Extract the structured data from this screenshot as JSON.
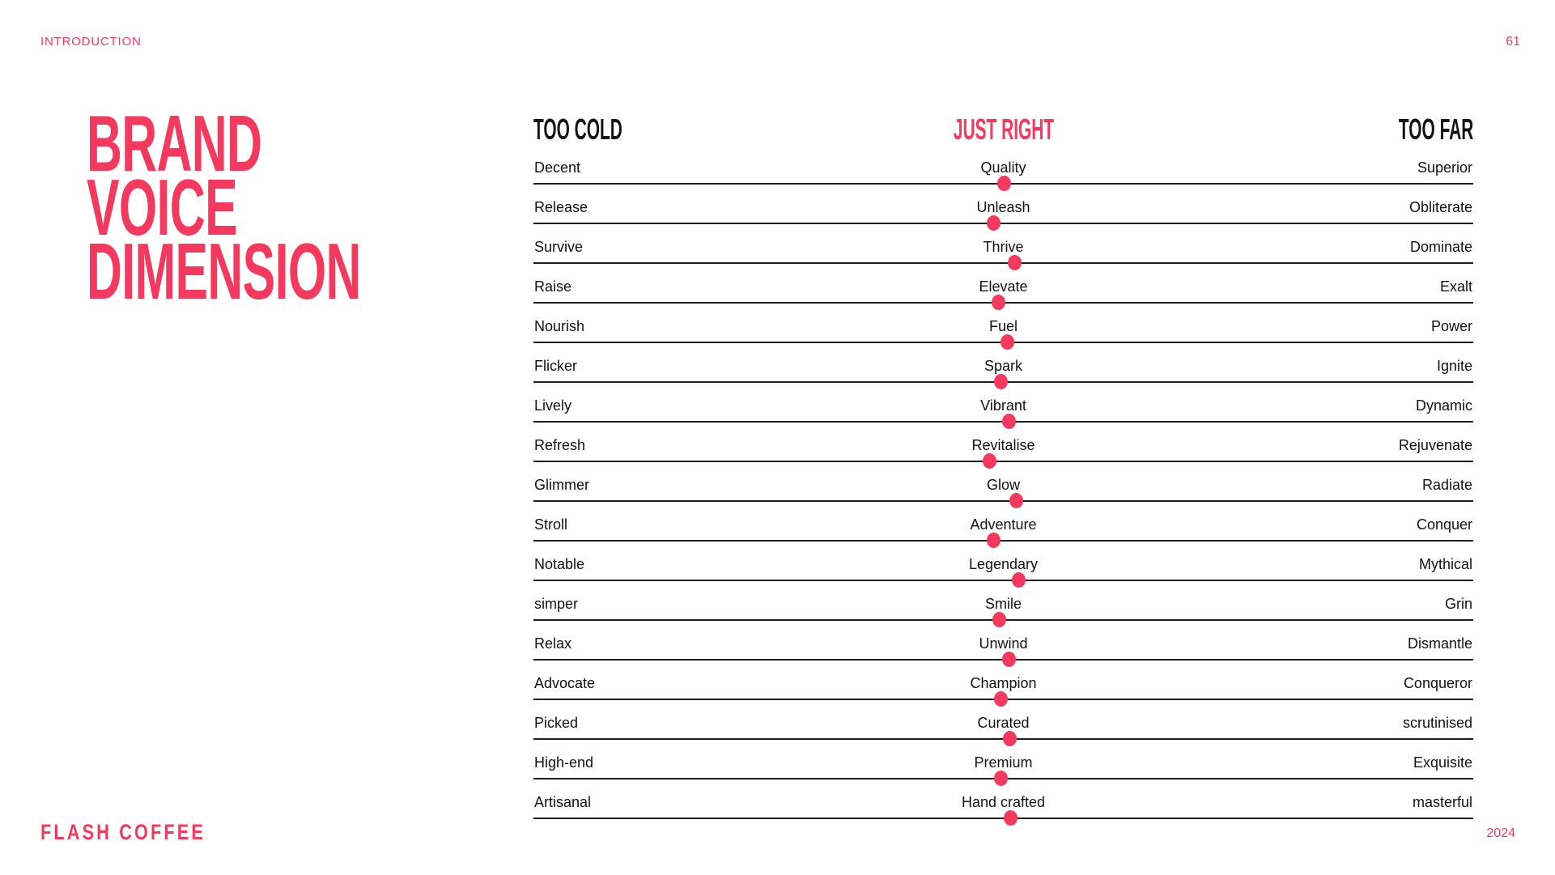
{
  "page": {
    "section_label": "INTRODUCTION",
    "page_number": "61",
    "footer_brand": "FLASH COFFEE",
    "footer_year": "2024",
    "accent_color": "#F4395E",
    "line_color": "#1d1d1d"
  },
  "title": {
    "lines": [
      "BRAND",
      "VOICE",
      "DIMENSION"
    ]
  },
  "table": {
    "headers": {
      "left": "TOO COLD",
      "center": "JUST RIGHT",
      "right": "TOO FAR"
    },
    "rows": [
      {
        "left": "Decent",
        "center": "Quality",
        "right": "Superior",
        "dot_percent": 50.1
      },
      {
        "left": "Release",
        "center": "Unleash",
        "right": "Obliterate",
        "dot_percent": 49.0
      },
      {
        "left": "Survive",
        "center": "Thrive",
        "right": "Dominate",
        "dot_percent": 51.2
      },
      {
        "left": "Raise",
        "center": "Elevate",
        "right": "Exalt",
        "dot_percent": 49.5
      },
      {
        "left": "Nourish",
        "center": "Fuel",
        "right": "Power",
        "dot_percent": 50.4
      },
      {
        "left": "Flicker",
        "center": "Spark",
        "right": "Ignite",
        "dot_percent": 49.7
      },
      {
        "left": "Lively",
        "center": "Vibrant",
        "right": "Dynamic",
        "dot_percent": 50.6
      },
      {
        "left": "Refresh",
        "center": "Revitalise",
        "right": "Rejuvenate",
        "dot_percent": 48.5
      },
      {
        "left": "Glimmer",
        "center": "Glow",
        "right": "Radiate",
        "dot_percent": 51.4
      },
      {
        "left": "Stroll",
        "center": "Adventure",
        "right": "Conquer",
        "dot_percent": 49.0
      },
      {
        "left": "Notable",
        "center": "Legendary",
        "right": "Mythical",
        "dot_percent": 51.6
      },
      {
        "left": "simper",
        "center": "Smile",
        "right": "Grin",
        "dot_percent": 49.6
      },
      {
        "left": "Relax",
        "center": "Unwind",
        "right": "Dismantle",
        "dot_percent": 50.6
      },
      {
        "left": "Advocate",
        "center": "Champion",
        "right": "Conqueror",
        "dot_percent": 49.7
      },
      {
        "left": "Picked",
        "center": "Curated",
        "right": "scrutinised",
        "dot_percent": 50.7
      },
      {
        "left": "High-end",
        "center": "Premium",
        "right": "Exquisite",
        "dot_percent": 49.7
      },
      {
        "left": "Artisanal",
        "center": "Hand crafted",
        "right": "masterful",
        "dot_percent": 50.8
      }
    ]
  }
}
